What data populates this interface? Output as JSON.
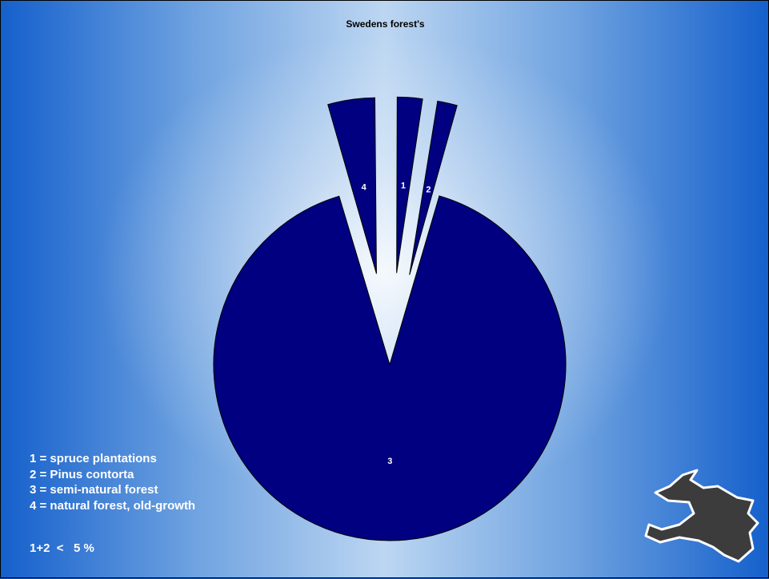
{
  "chart_data": {
    "type": "pie",
    "title": "Swedens forest's",
    "exploded": true,
    "slices": [
      {
        "label": "1",
        "value": 2.5,
        "color": "#000080"
      },
      {
        "label": "2",
        "value": 2.0,
        "color": "#000080"
      },
      {
        "label": "3",
        "value": 91.0,
        "color": "#000080"
      },
      {
        "label": "4",
        "value": 4.5,
        "color": "#000080"
      }
    ],
    "legend": [
      "1 = spruce plantations",
      "2 = Pinus contorta",
      "3 = semi-natural forest",
      "4 = natural forest, old-growth"
    ],
    "note": "1+2  <   5 %"
  },
  "colors": {
    "slice_fill": "#000080",
    "background_edge": "#1560cc",
    "background_center": "#d8e8f8"
  },
  "logo": {
    "icon": "bird-silhouette-icon"
  }
}
